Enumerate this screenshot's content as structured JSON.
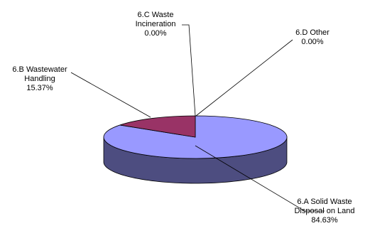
{
  "chart_data": {
    "type": "pie",
    "three_d": true,
    "slices": [
      {
        "label_lines": [
          "6.A Solid Waste",
          "Disposal on Land"
        ],
        "value_text": "84.63%",
        "value": 84.63,
        "color": "#9999ff",
        "side_color": "#4d4d80",
        "key": "solid-waste"
      },
      {
        "label_lines": [
          "6.B Wastewater",
          "Handling"
        ],
        "value_text": "15.37%",
        "value": 15.37,
        "color": "#993366",
        "side_color": "#4d1a33",
        "key": "wastewater"
      },
      {
        "label_lines": [
          "6.C Waste",
          "Incineration"
        ],
        "value_text": "0.00%",
        "value": 0.0,
        "color": "#ffffcc",
        "side_color": "#808066",
        "key": "incineration"
      },
      {
        "label_lines": [
          "6.D Other"
        ],
        "value_text": "0.00%",
        "value": 0.0,
        "color": "#ccffff",
        "side_color": "#668080",
        "key": "other"
      }
    ]
  }
}
